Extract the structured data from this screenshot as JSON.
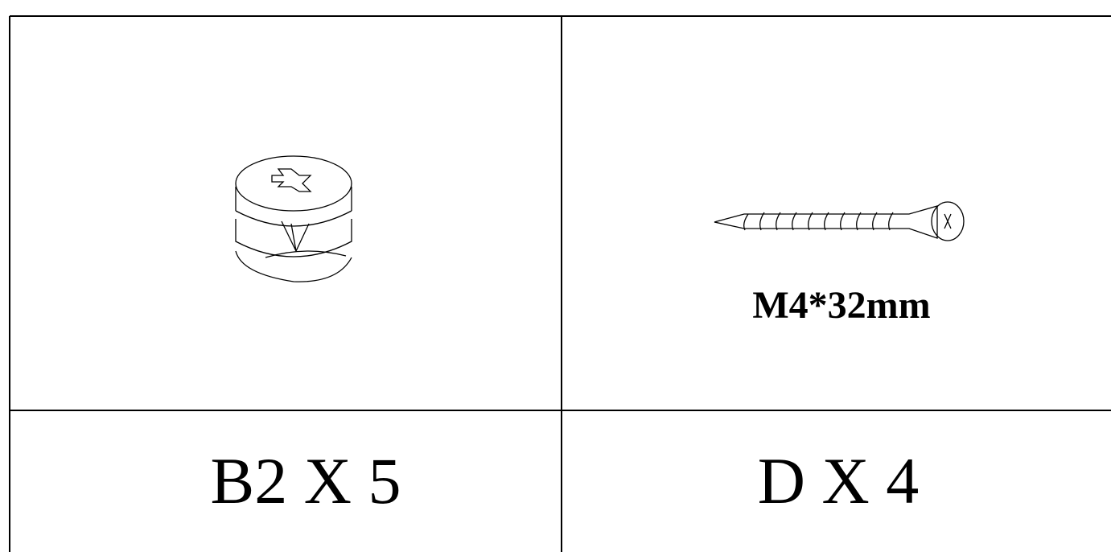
{
  "parts": [
    {
      "label": "B2 X 5"
    },
    {
      "spec": "M4*32mm",
      "label": "D X 4"
    }
  ]
}
